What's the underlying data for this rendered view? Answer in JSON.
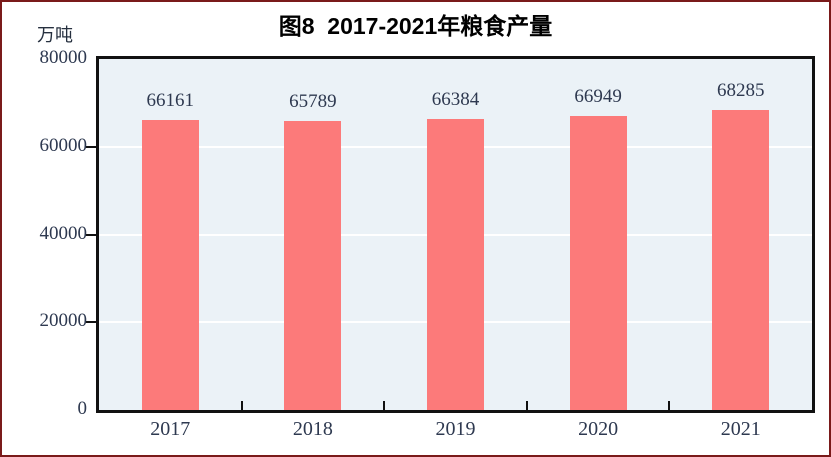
{
  "frame": {
    "border_color": "#7a1a1a",
    "background": "#ffffff"
  },
  "chart_data": {
    "type": "bar",
    "title": "图8  2017-2021年粮食产量",
    "unit_label": "万吨",
    "categories": [
      "2017",
      "2018",
      "2019",
      "2020",
      "2021"
    ],
    "values": [
      66161,
      65789,
      66384,
      66949,
      68285
    ],
    "ylim": [
      0,
      80000
    ],
    "yticks": [
      0,
      20000,
      40000,
      60000,
      80000
    ],
    "grid": true,
    "gridline_color": "#ffffff",
    "bar_color": "#fc7a7a",
    "plot_background": "#ebf2f7",
    "axis_border_color": "#111111",
    "label_color": "#2e3950",
    "title_color": "#000000",
    "legend": "none"
  }
}
